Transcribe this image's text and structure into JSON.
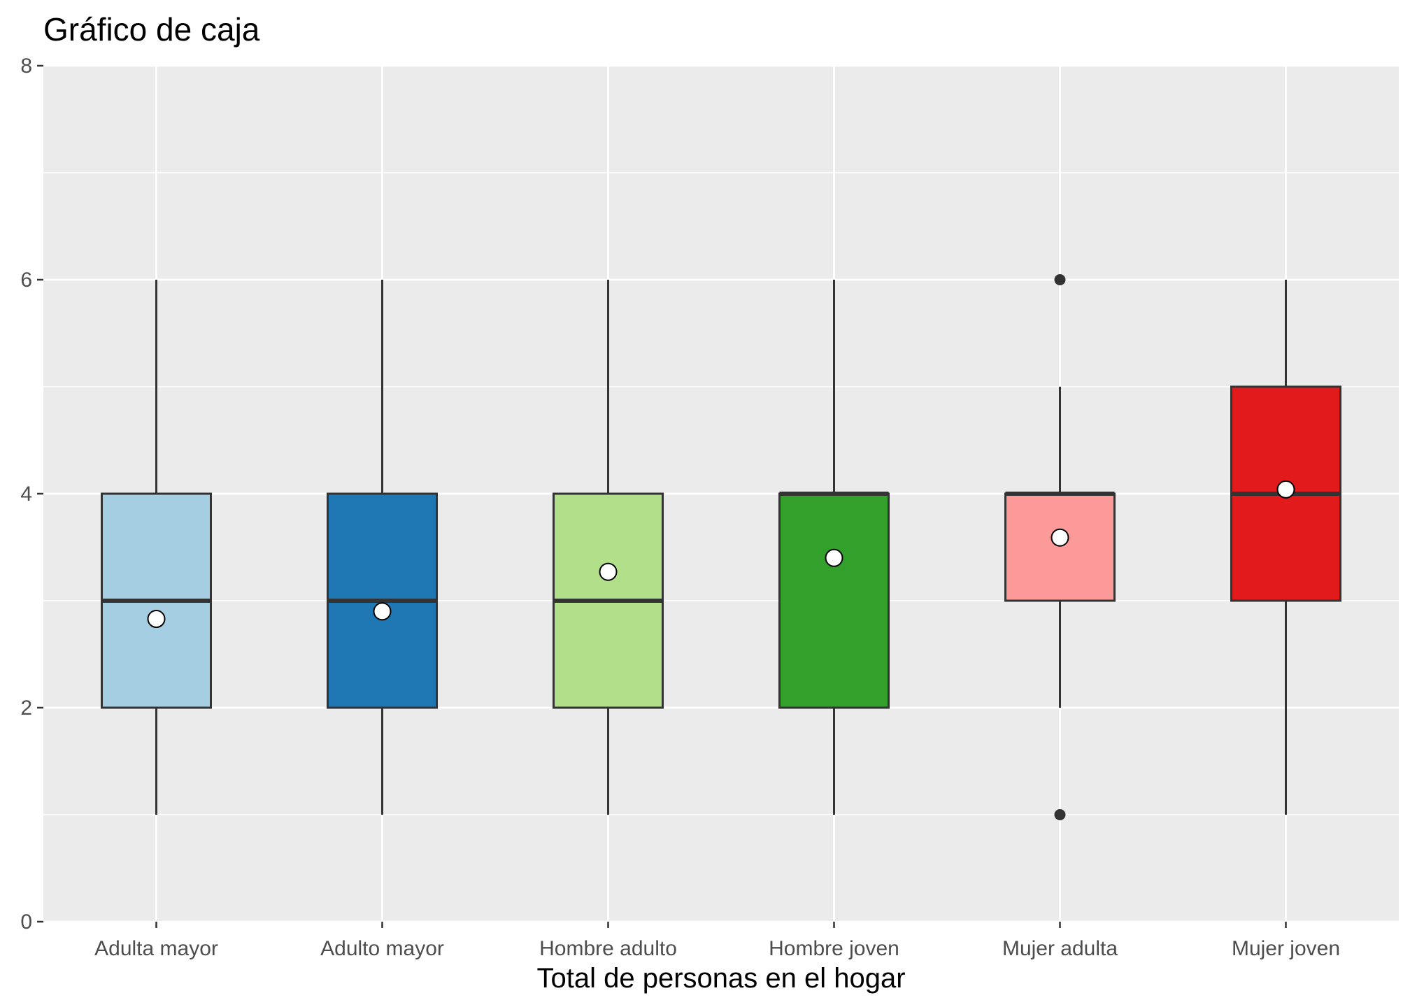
{
  "chart_data": {
    "type": "boxplot",
    "title": "Gráfico de caja",
    "xlabel": "Total de personas en el hogar",
    "ylabel": "",
    "ylim": [
      0,
      8
    ],
    "yticks": [
      0,
      2,
      4,
      6,
      8
    ],
    "grid": true,
    "legend": "none",
    "categories": [
      "Adulta mayor",
      "Adulto mayor",
      "Hombre adulto",
      "Hombre joven",
      "Mujer adulta",
      "Mujer joven"
    ],
    "boxes": [
      {
        "category": "Adulta mayor",
        "min": 1,
        "q1": 2,
        "median": 3,
        "q3": 4,
        "max": 6,
        "mean": 2.83,
        "outliers": [],
        "color": "#a6cee3"
      },
      {
        "category": "Adulto mayor",
        "min": 1,
        "q1": 2,
        "median": 3,
        "q3": 4,
        "max": 6,
        "mean": 2.9,
        "outliers": [],
        "color": "#1f78b4"
      },
      {
        "category": "Hombre adulto",
        "min": 1,
        "q1": 2,
        "median": 3,
        "q3": 4,
        "max": 6,
        "mean": 3.27,
        "outliers": [],
        "color": "#b2df8a"
      },
      {
        "category": "Hombre joven",
        "min": 1,
        "q1": 2,
        "median": 4,
        "q3": 4,
        "max": 6,
        "mean": 3.4,
        "outliers": [],
        "color": "#33a02c"
      },
      {
        "category": "Mujer adulta",
        "min": 2,
        "q1": 3,
        "median": 4,
        "q3": 4,
        "max": 5,
        "mean": 3.59,
        "outliers": [
          1,
          6
        ],
        "color": "#fb9a99"
      },
      {
        "category": "Mujer joven",
        "min": 1,
        "q1": 3,
        "median": 4,
        "q3": 5,
        "max": 6,
        "mean": 4.04,
        "outliers": [],
        "color": "#e31a1c"
      }
    ],
    "colors": {
      "panel_background": "#ebebeb",
      "gridline": "#ffffff",
      "box_outline": "#333333",
      "mean_point_fill": "#ffffff",
      "mean_point_stroke": "#000000",
      "outlier_point": "#333333"
    }
  }
}
